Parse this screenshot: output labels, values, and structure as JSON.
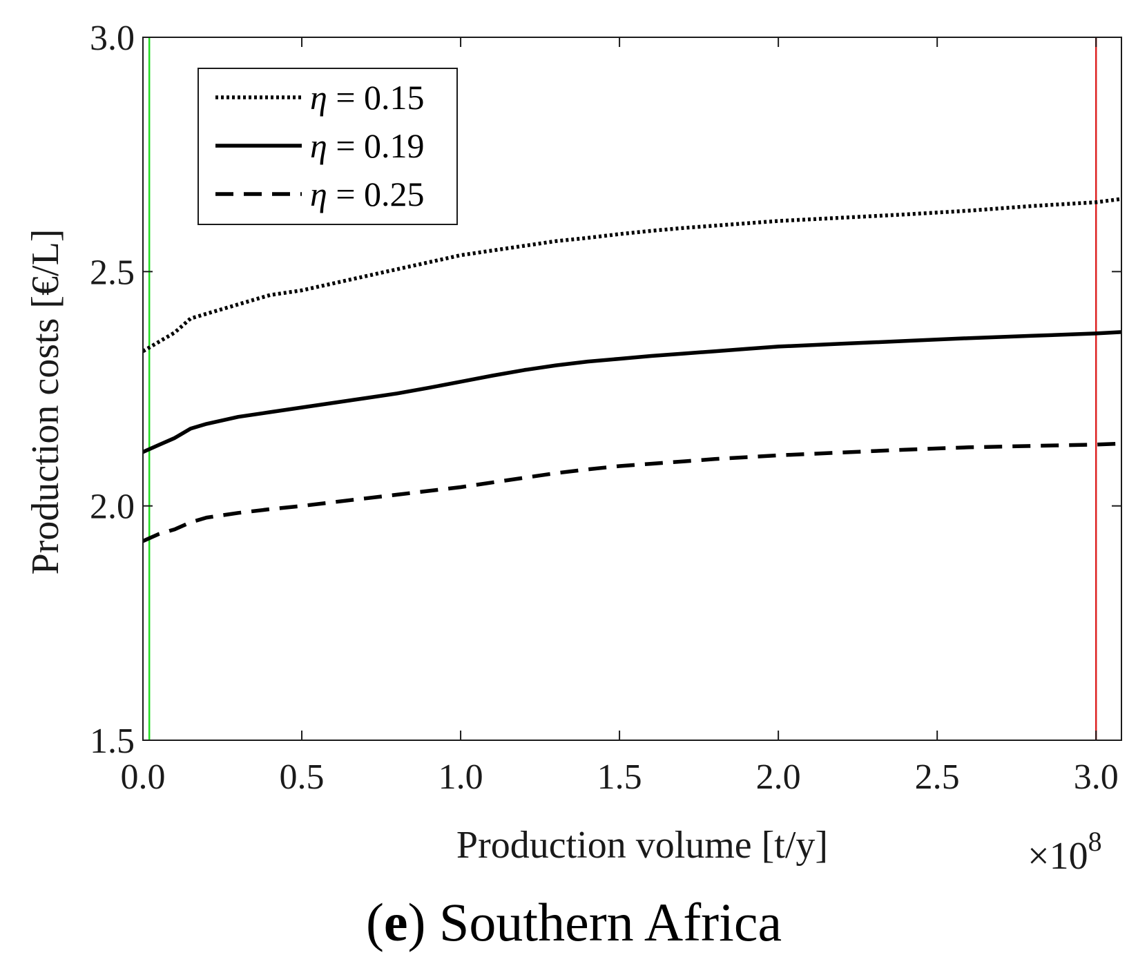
{
  "chart_data": {
    "type": "line",
    "title": "",
    "caption": {
      "open": "(",
      "letter": "e",
      "close": ")",
      "text": " Southern Africa"
    },
    "xlabel": "Production volume [t/y]",
    "ylabel": "Production costs [€/L]",
    "x_exponent": {
      "base": "×10",
      "power": "8"
    },
    "xlim": [
      0.0,
      3.08
    ],
    "ylim": [
      1.5,
      3.0
    ],
    "x_ticks": [
      0.0,
      0.5,
      1.0,
      1.5,
      2.0,
      2.5,
      3.0
    ],
    "x_tick_labels": [
      "0.0",
      "0.5",
      "1.0",
      "1.5",
      "2.0",
      "2.5",
      "3.0"
    ],
    "y_ticks": [
      1.5,
      2.0,
      2.5,
      3.0
    ],
    "y_tick_labels": [
      "1.5",
      "2.0",
      "2.5",
      "3.0"
    ],
    "grid": false,
    "legend_position": "top-left",
    "vertical_lines": [
      {
        "x": 0.02,
        "color": "#22dd22"
      },
      {
        "x": 3.0,
        "color": "#dd2222"
      }
    ],
    "series": [
      {
        "name": "η = 0.15",
        "legend_symbol": "η",
        "legend_value": " = 0.15",
        "style": "dotted",
        "color": "#000000",
        "x": [
          0.0,
          0.05,
          0.1,
          0.15,
          0.2,
          0.3,
          0.4,
          0.5,
          0.6,
          0.7,
          0.8,
          0.9,
          1.0,
          1.1,
          1.2,
          1.3,
          1.4,
          1.5,
          1.6,
          1.7,
          1.8,
          1.9,
          2.0,
          2.2,
          2.4,
          2.6,
          2.8,
          3.0,
          3.08
        ],
        "y": [
          2.33,
          2.35,
          2.37,
          2.4,
          2.41,
          2.43,
          2.45,
          2.46,
          2.475,
          2.49,
          2.505,
          2.52,
          2.535,
          2.545,
          2.555,
          2.565,
          2.572,
          2.58,
          2.587,
          2.593,
          2.598,
          2.603,
          2.608,
          2.615,
          2.622,
          2.63,
          2.64,
          2.648,
          2.655
        ]
      },
      {
        "name": "η = 0.19",
        "legend_symbol": "η",
        "legend_value": " = 0.19",
        "style": "solid",
        "color": "#000000",
        "x": [
          0.0,
          0.05,
          0.1,
          0.15,
          0.2,
          0.3,
          0.4,
          0.5,
          0.6,
          0.7,
          0.8,
          0.9,
          1.0,
          1.1,
          1.2,
          1.3,
          1.4,
          1.5,
          1.6,
          1.7,
          1.8,
          1.9,
          2.0,
          2.2,
          2.4,
          2.6,
          2.8,
          3.0,
          3.08
        ],
        "y": [
          2.115,
          2.13,
          2.145,
          2.165,
          2.175,
          2.19,
          2.2,
          2.21,
          2.22,
          2.23,
          2.24,
          2.252,
          2.265,
          2.278,
          2.29,
          2.3,
          2.308,
          2.314,
          2.32,
          2.325,
          2.33,
          2.335,
          2.34,
          2.346,
          2.352,
          2.358,
          2.363,
          2.368,
          2.371
        ]
      },
      {
        "name": "η = 0.25",
        "legend_symbol": "η",
        "legend_value": " = 0.25",
        "style": "dashed",
        "color": "#000000",
        "x": [
          0.0,
          0.05,
          0.1,
          0.15,
          0.2,
          0.3,
          0.4,
          0.5,
          0.6,
          0.7,
          0.8,
          0.9,
          1.0,
          1.1,
          1.2,
          1.3,
          1.4,
          1.5,
          1.6,
          1.7,
          1.8,
          1.9,
          2.0,
          2.2,
          2.4,
          2.6,
          2.8,
          3.0,
          3.08
        ],
        "y": [
          1.925,
          1.94,
          1.95,
          1.965,
          1.975,
          1.985,
          1.993,
          2.0,
          2.008,
          2.016,
          2.024,
          2.032,
          2.04,
          2.05,
          2.06,
          2.07,
          2.078,
          2.085,
          2.09,
          2.095,
          2.1,
          2.104,
          2.108,
          2.114,
          2.12,
          2.125,
          2.128,
          2.131,
          2.133
        ]
      }
    ]
  }
}
